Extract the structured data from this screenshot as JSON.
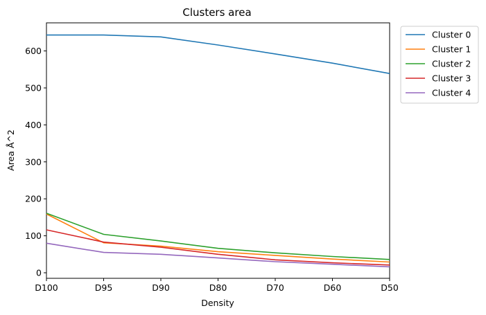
{
  "chart_data": {
    "type": "line",
    "title": "Clusters area",
    "xlabel": "Density",
    "ylabel": "Area Å^2",
    "categories": [
      "D100",
      "D95",
      "D90",
      "D80",
      "D70",
      "D60",
      "D50"
    ],
    "yticks": [
      0,
      100,
      200,
      300,
      400,
      500,
      600
    ],
    "ylim": [
      -15,
      676
    ],
    "grid": false,
    "legend_position": "outside-top-right",
    "series": [
      {
        "name": "Cluster 0",
        "color": "#1f77b4",
        "values": [
          643,
          643,
          638,
          616,
          592,
          567,
          539
        ]
      },
      {
        "name": "Cluster 1",
        "color": "#ff7f0e",
        "values": [
          159,
          81,
          72,
          57,
          47,
          37,
          29
        ]
      },
      {
        "name": "Cluster 2",
        "color": "#2ca02c",
        "values": [
          161,
          104,
          86,
          66,
          54,
          44,
          36
        ]
      },
      {
        "name": "Cluster 3",
        "color": "#d62728",
        "values": [
          116,
          83,
          69,
          50,
          35,
          27,
          21
        ]
      },
      {
        "name": "Cluster 4",
        "color": "#9467bd",
        "values": [
          80,
          55,
          50,
          40,
          30,
          23,
          16
        ]
      }
    ]
  }
}
